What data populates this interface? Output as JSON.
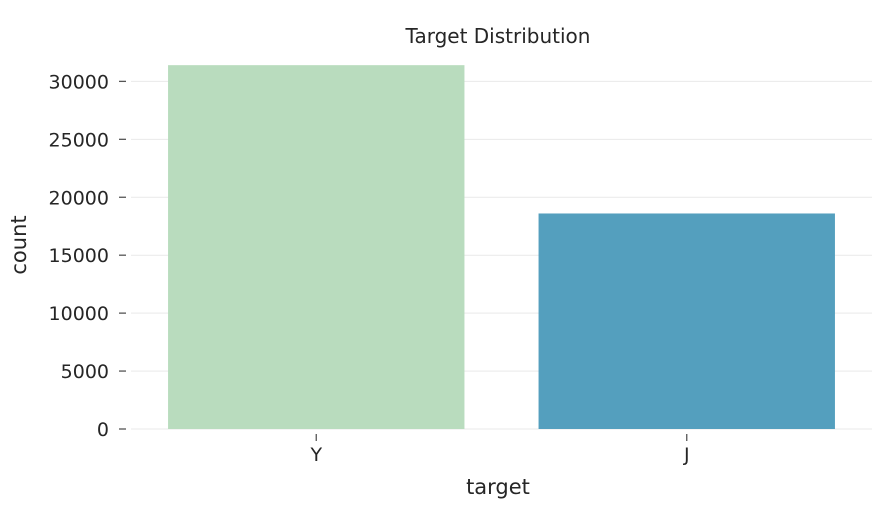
{
  "chart_data": {
    "type": "bar",
    "title": "Target Distribution",
    "xlabel": "target",
    "ylabel": "count",
    "categories": [
      "Y",
      "J"
    ],
    "values": [
      31400,
      18600
    ],
    "colors": [
      "#b9dcbe",
      "#549fbe"
    ],
    "ylim": [
      0,
      31500
    ],
    "yticks": [
      0,
      5000,
      10000,
      15000,
      20000,
      25000,
      30000
    ],
    "grid": true,
    "legend": "none"
  }
}
